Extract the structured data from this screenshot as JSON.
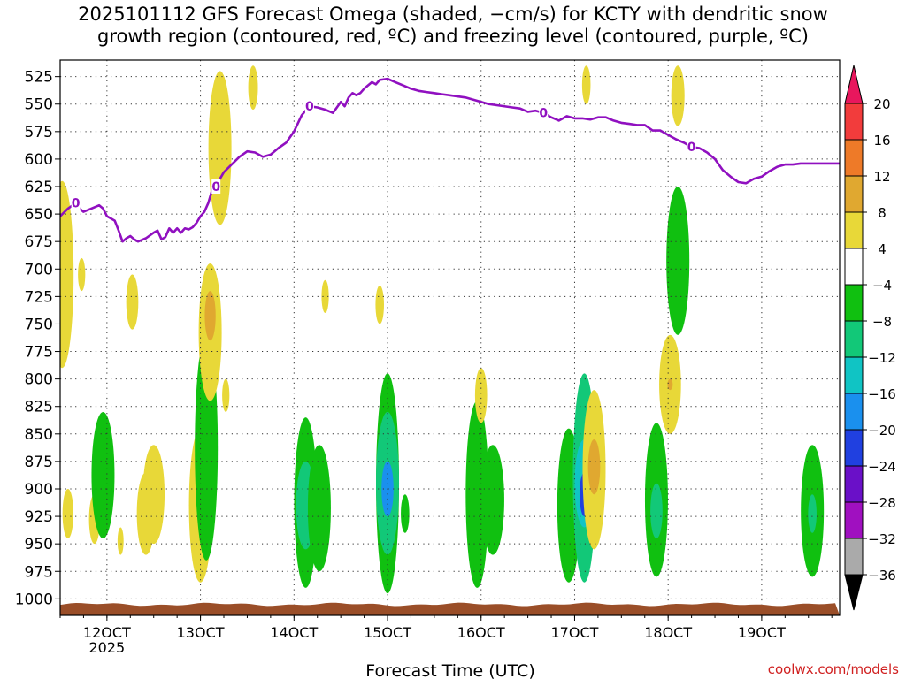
{
  "title": {
    "line1": "2025101112 GFS Forecast Omega (shaded, −cm/s) for KCTY with dendritic snow",
    "line2": "growth region (contoured, red, ºC) and freezing level (contoured, purple, ºC)"
  },
  "credit": "coolwx.com/models",
  "chart_data": {
    "type": "heatmap",
    "title": "2025101112 GFS Forecast Omega (shaded, −cm/s) for KCTY",
    "xlabel": "Forecast Time (UTC)",
    "x_range_hours_from_12Z_11OCT": [
      0,
      200
    ],
    "y_range_hPa": [
      1015,
      510
    ],
    "y_inverted": true,
    "yticks": [
      525,
      550,
      575,
      600,
      625,
      650,
      675,
      700,
      725,
      750,
      775,
      800,
      825,
      850,
      875,
      900,
      925,
      950,
      975,
      1000
    ],
    "xticks": [
      {
        "hour": 12,
        "label": "12OCT",
        "sub": "2025"
      },
      {
        "hour": 36,
        "label": "13OCT",
        "sub": ""
      },
      {
        "hour": 60,
        "label": "14OCT",
        "sub": ""
      },
      {
        "hour": 84,
        "label": "15OCT",
        "sub": ""
      },
      {
        "hour": 108,
        "label": "16OCT",
        "sub": ""
      },
      {
        "hour": 132,
        "label": "17OCT",
        "sub": ""
      },
      {
        "hour": 156,
        "label": "18OCT",
        "sub": ""
      },
      {
        "hour": 180,
        "label": "19OCT",
        "sub": ""
      }
    ],
    "grid": "dotted",
    "colorbar": {
      "levels": [
        20,
        16,
        12,
        8,
        4,
        -4,
        -8,
        -12,
        -16,
        -20,
        -24,
        -28,
        -32,
        -36
      ],
      "colors": [
        "#e8175d",
        "#f23c3c",
        "#ee7a28",
        "#e0a830",
        "#e8d838",
        "#ffffff",
        "#10c010",
        "#12c878",
        "#10c4c4",
        "#1a90ee",
        "#2040e0",
        "#6a10c8",
        "#a010c0",
        "#aaaaaa",
        "#000000"
      ]
    },
    "omega_regions": [
      {
        "hour": 0.5,
        "p_top": 620,
        "p_bot": 790,
        "value": 5
      },
      {
        "hour": 2,
        "p_top": 900,
        "p_bot": 945,
        "value": 5
      },
      {
        "hour": 5.5,
        "p_top": 690,
        "p_bot": 720,
        "value": 5
      },
      {
        "hour": 8.8,
        "p_top": 905,
        "p_bot": 950,
        "value": 5
      },
      {
        "hour": 11,
        "p_top": 830,
        "p_bot": 945,
        "value": -6
      },
      {
        "hour": 15.5,
        "p_top": 935,
        "p_bot": 960,
        "value": 5
      },
      {
        "hour": 18.5,
        "p_top": 705,
        "p_bot": 755,
        "value": 5
      },
      {
        "hour": 22,
        "p_top": 885,
        "p_bot": 960,
        "value": 6
      },
      {
        "hour": 24,
        "p_top": 860,
        "p_bot": 950,
        "value": 5
      },
      {
        "hour": 36,
        "p_top": 845,
        "p_bot": 985,
        "value": 7
      },
      {
        "hour": 37.5,
        "p_top": 760,
        "p_bot": 965,
        "value": -7
      },
      {
        "hour": 38.5,
        "p_top": 695,
        "p_bot": 820,
        "value": 5
      },
      {
        "hour": 38.5,
        "p_top": 720,
        "p_bot": 765,
        "value": 10
      },
      {
        "hour": 41,
        "p_top": 520,
        "p_bot": 660,
        "value": 5
      },
      {
        "hour": 42.5,
        "p_top": 800,
        "p_bot": 830,
        "value": 5
      },
      {
        "hour": 49.5,
        "p_top": 515,
        "p_bot": 555,
        "value": 5
      },
      {
        "hour": 63,
        "p_top": 835,
        "p_bot": 990,
        "value": -8
      },
      {
        "hour": 63,
        "p_top": 875,
        "p_bot": 955,
        "value": -10
      },
      {
        "hour": 66.5,
        "p_top": 860,
        "p_bot": 975,
        "value": -6
      },
      {
        "hour": 68,
        "p_top": 710,
        "p_bot": 740,
        "value": 5
      },
      {
        "hour": 84,
        "p_top": 795,
        "p_bot": 995,
        "value": -8
      },
      {
        "hour": 84,
        "p_top": 830,
        "p_bot": 960,
        "value": -12
      },
      {
        "hour": 84,
        "p_top": 875,
        "p_bot": 925,
        "value": -17
      },
      {
        "hour": 82,
        "p_top": 715,
        "p_bot": 750,
        "value": 5
      },
      {
        "hour": 88.5,
        "p_top": 905,
        "p_bot": 940,
        "value": -6
      },
      {
        "hour": 107,
        "p_top": 820,
        "p_bot": 990,
        "value": -8
      },
      {
        "hour": 108,
        "p_top": 790,
        "p_bot": 840,
        "value": 5
      },
      {
        "hour": 111,
        "p_top": 860,
        "p_bot": 960,
        "value": -6
      },
      {
        "hour": 130.5,
        "p_top": 845,
        "p_bot": 985,
        "value": -8
      },
      {
        "hour": 134.5,
        "p_top": 795,
        "p_bot": 985,
        "value": -12
      },
      {
        "hour": 134.5,
        "p_top": 855,
        "p_bot": 935,
        "value": -16
      },
      {
        "hour": 134.5,
        "p_top": 885,
        "p_bot": 925,
        "value": -22
      },
      {
        "hour": 137,
        "p_top": 810,
        "p_bot": 955,
        "value": 5
      },
      {
        "hour": 137,
        "p_top": 855,
        "p_bot": 905,
        "value": 9
      },
      {
        "hour": 135,
        "p_top": 515,
        "p_bot": 550,
        "value": 5
      },
      {
        "hour": 153,
        "p_top": 840,
        "p_bot": 980,
        "value": -7
      },
      {
        "hour": 153,
        "p_top": 895,
        "p_bot": 945,
        "value": -12
      },
      {
        "hour": 156.5,
        "p_top": 760,
        "p_bot": 850,
        "value": 5
      },
      {
        "hour": 156.5,
        "p_top": 800,
        "p_bot": 810,
        "value": 10
      },
      {
        "hour": 158.5,
        "p_top": 625,
        "p_bot": 760,
        "value": -7
      },
      {
        "hour": 158.5,
        "p_top": 515,
        "p_bot": 570,
        "value": 5
      },
      {
        "hour": 193,
        "p_top": 860,
        "p_bot": 980,
        "value": -7
      },
      {
        "hour": 193,
        "p_top": 905,
        "p_bot": 940,
        "value": -12
      }
    ],
    "freezing_level": {
      "label": "0",
      "hours": [
        0,
        2,
        4,
        5,
        6,
        8,
        10,
        11,
        12,
        14,
        15,
        16,
        17,
        18,
        19,
        20,
        22,
        24,
        25,
        26,
        27,
        28,
        29,
        30,
        31,
        32,
        33,
        34,
        35,
        36,
        37,
        38,
        39,
        40,
        41,
        42,
        44,
        46,
        48,
        50,
        52,
        54,
        56,
        58,
        60,
        62,
        64,
        66,
        68,
        70,
        71,
        72,
        73,
        74,
        75,
        76,
        77,
        78,
        80,
        81,
        82,
        84,
        86,
        88,
        90,
        92,
        94,
        96,
        98,
        100,
        104,
        108,
        110,
        112,
        116,
        118,
        120,
        122,
        124,
        126,
        128,
        130,
        132,
        134,
        136,
        138,
        140,
        142,
        144,
        146,
        148,
        150,
        152,
        154,
        156,
        158,
        160,
        162,
        164,
        166,
        168,
        170,
        172,
        174,
        176,
        178,
        180,
        182,
        184,
        186,
        188,
        190,
        192,
        194,
        196,
        198,
        200
      ],
      "pressure": [
        652,
        645,
        640,
        645,
        648,
        645,
        642,
        645,
        652,
        656,
        665,
        675,
        672,
        670,
        673,
        675,
        672,
        667,
        665,
        673,
        671,
        663,
        667,
        663,
        667,
        663,
        664,
        662,
        658,
        652,
        648,
        640,
        628,
        625,
        618,
        612,
        605,
        598,
        593,
        594,
        598,
        596,
        590,
        585,
        575,
        560,
        552,
        553,
        555,
        558,
        553,
        548,
        552,
        544,
        540,
        542,
        540,
        536,
        530,
        532,
        528,
        527,
        530,
        533,
        536,
        538,
        539,
        540,
        541,
        542,
        544,
        548,
        550,
        551,
        553,
        554,
        557,
        556,
        558,
        562,
        565,
        561,
        563,
        563,
        564,
        562,
        562,
        565,
        567,
        568,
        569,
        569,
        574,
        574,
        578,
        582,
        585,
        589,
        590,
        594,
        600,
        610,
        616,
        621,
        622,
        618,
        616,
        611,
        607,
        605,
        605,
        604,
        604,
        604,
        604,
        604,
        604
      ],
      "label_hours": [
        4,
        40,
        64,
        124,
        162
      ]
    },
    "terrain_surface_hPa": 1005
  }
}
